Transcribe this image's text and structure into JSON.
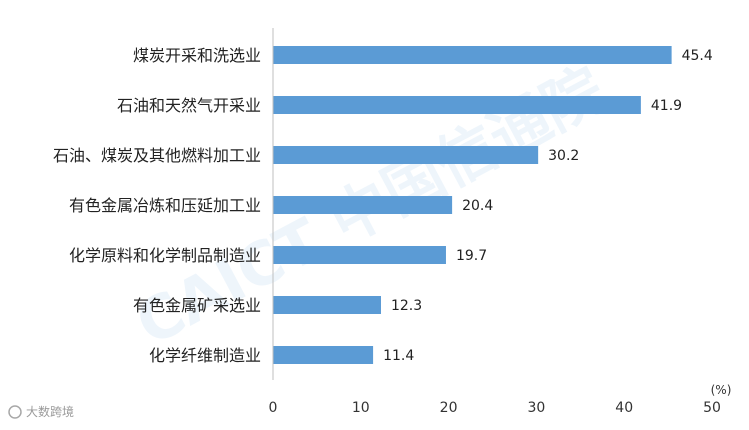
{
  "chart_data": {
    "type": "bar",
    "orientation": "horizontal",
    "categories": [
      "煤炭开采和洗选业",
      "石油和天然气开采业",
      "石油、煤炭及其他燃料加工业",
      "有色金属冶炼和压延加工业",
      "化学原料和化学制品制造业",
      "有色金属矿采选业",
      "化学纤维制造业"
    ],
    "values": [
      45.4,
      41.9,
      30.2,
      20.4,
      19.7,
      12.3,
      11.4
    ],
    "value_labels": [
      "45.4",
      "41.9",
      "30.2",
      "20.4",
      "19.7",
      "12.3",
      "11.4"
    ],
    "x_ticks": [
      "0",
      "10",
      "20",
      "30",
      "40",
      "50"
    ],
    "xlim": [
      0,
      50
    ],
    "unit_label": "(%)",
    "grid": false,
    "legend": "none",
    "bar_color": "#5b9bd5"
  },
  "watermark": {
    "text": "CAICT 中国信通院"
  },
  "source_logo": {
    "text": "大数跨境"
  }
}
